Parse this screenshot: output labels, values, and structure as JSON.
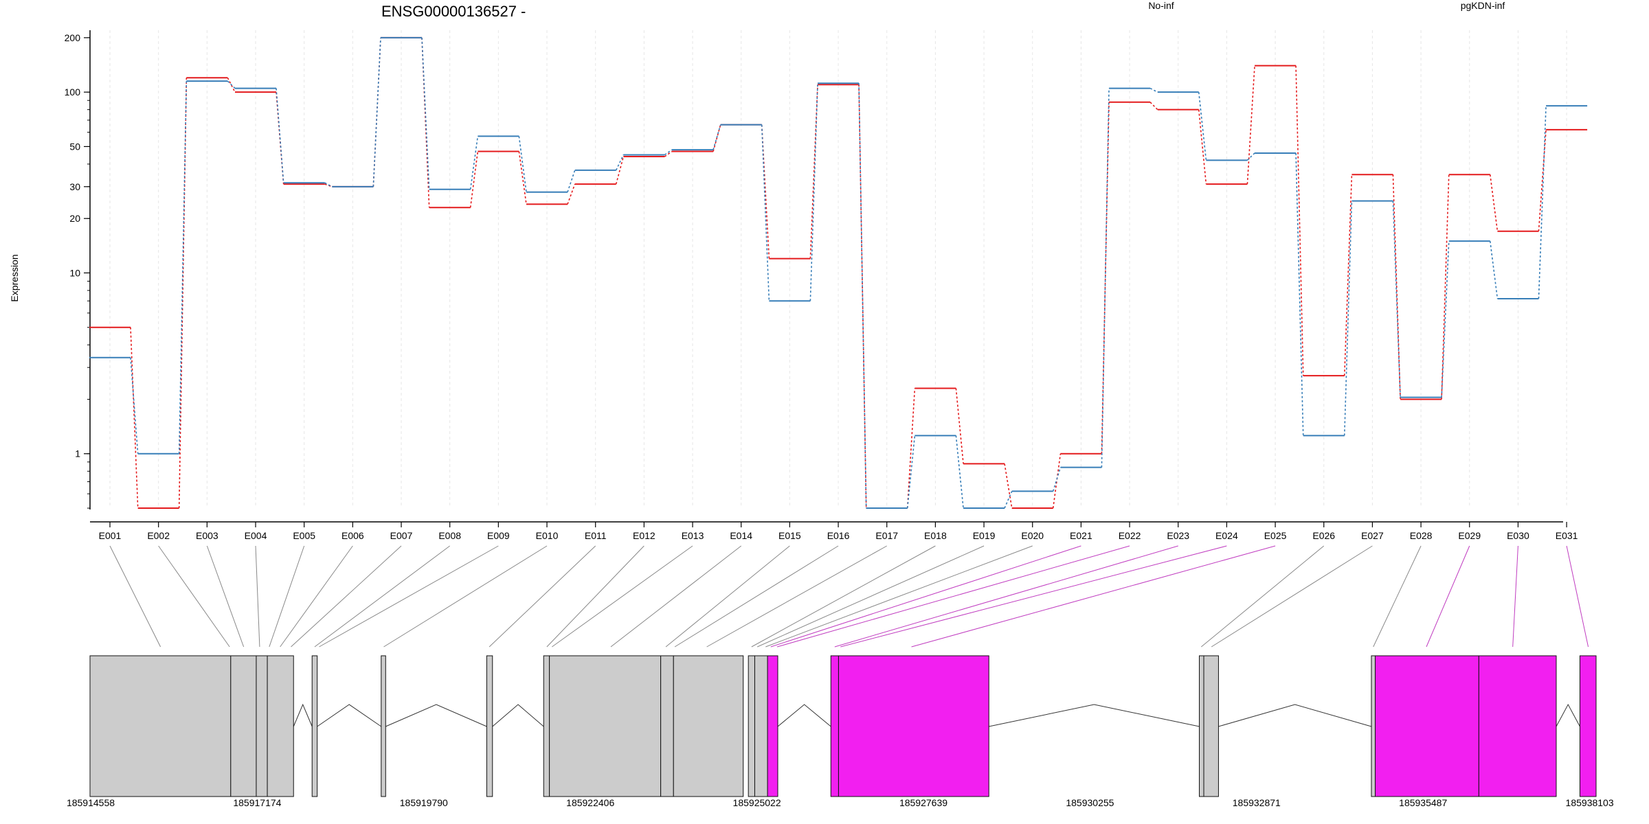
{
  "title": "ENSG00000136527 -",
  "ylabel": "Expression",
  "colors": {
    "no_inf": "#e41a1c",
    "pgkdn_inf": "#377eb8",
    "exon_gray": "#cccccc",
    "exon_magenta": "#f21ff0",
    "connector_gray": "#888888",
    "connector_magenta": "#c03cc0"
  },
  "chart_data": {
    "type": "line",
    "title": "ENSG00000136527 -",
    "xlabel": "",
    "ylabel": "Expression",
    "y_scale": "log",
    "y_ticks": [
      1,
      10,
      20,
      30,
      50,
      100,
      200
    ],
    "y_tick_labels": [
      "1",
      "10",
      "20",
      "30",
      "50",
      "100",
      "200"
    ],
    "ylim": [
      0.5,
      220
    ],
    "categories": [
      "E001",
      "E002",
      "E003",
      "E004",
      "E005",
      "E006",
      "E007",
      "E008",
      "E009",
      "E010",
      "E011",
      "E012",
      "E013",
      "E014",
      "E015",
      "E016",
      "E017",
      "E018",
      "E019",
      "E020",
      "E021",
      "E022",
      "E023",
      "E024",
      "E025",
      "E026",
      "E027",
      "E028",
      "E029",
      "E030",
      "E031"
    ],
    "legend": "top-right",
    "series": [
      {
        "name": "No-inf",
        "color": "#e41a1c",
        "values": [
          5.0,
          0.5,
          120,
          100,
          31,
          30,
          200,
          23,
          47,
          24,
          31,
          44,
          47,
          66,
          12,
          110,
          0.5,
          2.3,
          0.88,
          0.5,
          1.0,
          88,
          80,
          31,
          140,
          2.7,
          35,
          2.0,
          35,
          17,
          62
        ]
      },
      {
        "name": "pgKDN-inf",
        "color": "#377eb8",
        "values": [
          3.4,
          1.0,
          115,
          105,
          31.5,
          30,
          200,
          29,
          57,
          28,
          37,
          45,
          48,
          66,
          7.0,
          112,
          0.5,
          1.26,
          0.5,
          0.62,
          0.84,
          105,
          100,
          42,
          46,
          1.26,
          25,
          2.05,
          15,
          7.2,
          84
        ]
      }
    ],
    "genomic_ticks": [
      "185914558",
      "185917174",
      "185919790",
      "185922406",
      "185925022",
      "185927639",
      "185930255",
      "185932871",
      "185935487",
      "185938103"
    ],
    "gene_model": {
      "genomic_range": [
        185914558,
        185938103
      ],
      "exons": [
        {
          "start": 185914558,
          "end": 185916758,
          "color": "gray"
        },
        {
          "start": 185916758,
          "end": 185917157,
          "color": "gray"
        },
        {
          "start": 185917157,
          "end": 185917330,
          "color": "gray"
        },
        {
          "start": 185917330,
          "end": 185917740,
          "color": "gray"
        },
        {
          "start": 185918030,
          "end": 185918110,
          "color": "gray"
        },
        {
          "start": 185919110,
          "end": 185919180,
          "color": "gray"
        },
        {
          "start": 185920760,
          "end": 185920850,
          "color": "gray"
        },
        {
          "start": 185921650,
          "end": 185921740,
          "color": "gray"
        },
        {
          "start": 185921740,
          "end": 185923480,
          "color": "gray"
        },
        {
          "start": 185923480,
          "end": 185923680,
          "color": "gray"
        },
        {
          "start": 185923680,
          "end": 185924770,
          "color": "gray"
        },
        {
          "start": 185924850,
          "end": 185924950,
          "color": "gray"
        },
        {
          "start": 185924950,
          "end": 185925150,
          "color": "gray"
        },
        {
          "start": 185925150,
          "end": 185925310,
          "color": "magenta"
        },
        {
          "start": 185926140,
          "end": 185926260,
          "color": "magenta"
        },
        {
          "start": 185926260,
          "end": 185928610,
          "color": "magenta"
        },
        {
          "start": 185931900,
          "end": 185931970,
          "color": "gray"
        },
        {
          "start": 185931970,
          "end": 185932200,
          "color": "gray"
        },
        {
          "start": 185934590,
          "end": 185934650,
          "color": "gray"
        },
        {
          "start": 185934650,
          "end": 185936270,
          "color": "magenta"
        },
        {
          "start": 185936270,
          "end": 185937480,
          "color": "magenta"
        },
        {
          "start": 185937850,
          "end": 185938103,
          "color": "magenta"
        }
      ],
      "introns": [
        [
          185917740,
          185918030
        ],
        [
          185918110,
          185919110
        ],
        [
          185919180,
          185920760
        ],
        [
          185920850,
          185921650
        ],
        [
          185925310,
          185926140
        ],
        [
          185928610,
          185931900
        ],
        [
          185932200,
          185934590
        ],
        [
          185937480,
          185937850
        ]
      ],
      "connectors": [
        {
          "exon": "E001",
          "pos": 185915660,
          "color": "gray"
        },
        {
          "exon": "E002",
          "pos": 185916740,
          "color": "gray"
        },
        {
          "exon": "E003",
          "pos": 185916960,
          "color": "gray"
        },
        {
          "exon": "E004",
          "pos": 185917210,
          "color": "gray"
        },
        {
          "exon": "E005",
          "pos": 185917360,
          "color": "gray"
        },
        {
          "exon": "E006",
          "pos": 185917530,
          "color": "gray"
        },
        {
          "exon": "E007",
          "pos": 185917700,
          "color": "gray"
        },
        {
          "exon": "E008",
          "pos": 185918070,
          "color": "gray"
        },
        {
          "exon": "E009",
          "pos": 185918140,
          "color": "gray"
        },
        {
          "exon": "E010",
          "pos": 185919150,
          "color": "gray"
        },
        {
          "exon": "E011",
          "pos": 185920800,
          "color": "gray"
        },
        {
          "exon": "E012",
          "pos": 185921700,
          "color": "gray"
        },
        {
          "exon": "E013",
          "pos": 185921780,
          "color": "gray"
        },
        {
          "exon": "E014",
          "pos": 185922700,
          "color": "gray"
        },
        {
          "exon": "E015",
          "pos": 185923560,
          "color": "gray"
        },
        {
          "exon": "E016",
          "pos": 185923700,
          "color": "gray"
        },
        {
          "exon": "E017",
          "pos": 185924200,
          "color": "gray"
        },
        {
          "exon": "E018",
          "pos": 185924900,
          "color": "gray"
        },
        {
          "exon": "E019",
          "pos": 185924990,
          "color": "gray"
        },
        {
          "exon": "E020",
          "pos": 185925120,
          "color": "gray"
        },
        {
          "exon": "E021",
          "pos": 185925200,
          "color": "magenta"
        },
        {
          "exon": "E022",
          "pos": 185925300,
          "color": "magenta"
        },
        {
          "exon": "E023",
          "pos": 185926200,
          "color": "magenta"
        },
        {
          "exon": "E024",
          "pos": 185926290,
          "color": "magenta"
        },
        {
          "exon": "E025",
          "pos": 185927400,
          "color": "magenta"
        },
        {
          "exon": "E026",
          "pos": 185931930,
          "color": "gray"
        },
        {
          "exon": "E027",
          "pos": 185932090,
          "color": "gray"
        },
        {
          "exon": "E028",
          "pos": 185934620,
          "color": "gray"
        },
        {
          "exon": "E029",
          "pos": 185935450,
          "color": "magenta"
        },
        {
          "exon": "E030",
          "pos": 185936800,
          "color": "magenta"
        },
        {
          "exon": "E031",
          "pos": 185937980,
          "color": "magenta"
        }
      ]
    }
  }
}
